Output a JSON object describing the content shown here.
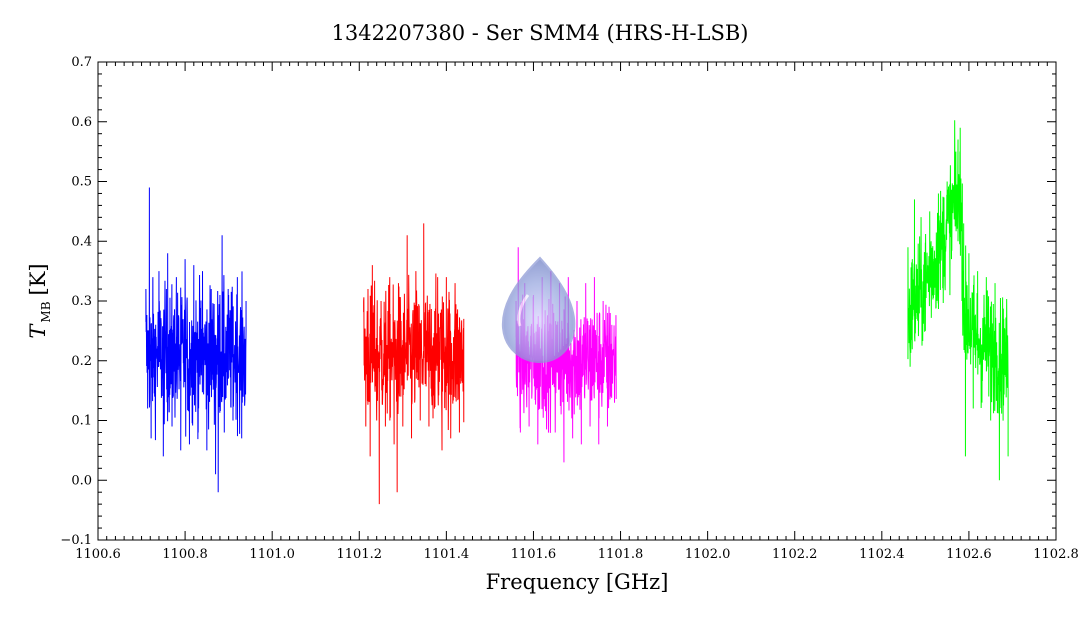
{
  "chart_data": {
    "type": "line",
    "title": "1342207380 - Ser SMM4 (HRS-H-LSB)",
    "xlabel": "Frequency [GHz]",
    "ylabel": {
      "symbol": "T",
      "subscript": "MB",
      "unit": "[K]"
    },
    "xlim": [
      1100.6,
      1102.8
    ],
    "ylim": [
      -0.1,
      0.7
    ],
    "x_ticks": [
      "1100.6",
      "1100.8",
      "1101.0",
      "1101.2",
      "1101.4",
      "1101.6",
      "1101.8",
      "1102.0",
      "1102.2",
      "1102.4",
      "1102.6",
      "1102.8"
    ],
    "y_ticks": [
      "0.7",
      "0.6",
      "0.5",
      "0.4",
      "0.3",
      "0.2",
      "0.1",
      "0.0",
      "−0.1"
    ],
    "grid": false,
    "legend": "none",
    "series": [
      {
        "color": "#0000ff",
        "x_range": [
          1100.71,
          1100.94
        ],
        "baseline": 0.21,
        "noise": 0.09,
        "points": [
          [
            1100.71,
            0.32
          ],
          [
            1100.714,
            0.12
          ],
          [
            1100.718,
            0.49
          ],
          [
            1100.722,
            0.07
          ],
          [
            1100.726,
            0.34
          ],
          [
            1100.73,
            0.14
          ],
          [
            1100.74,
            0.35
          ],
          [
            1100.75,
            0.04
          ],
          [
            1100.76,
            0.38
          ],
          [
            1100.77,
            0.09
          ],
          [
            1100.78,
            0.34
          ],
          [
            1100.79,
            0.05
          ],
          [
            1100.8,
            0.37
          ],
          [
            1100.81,
            0.06
          ],
          [
            1100.82,
            0.36
          ],
          [
            1100.83,
            0.08
          ],
          [
            1100.84,
            0.35
          ],
          [
            1100.85,
            0.05
          ],
          [
            1100.86,
            0.32
          ],
          [
            1100.87,
            0.01
          ],
          [
            1100.876,
            -0.02
          ],
          [
            1100.88,
            0.31
          ],
          [
            1100.885,
            0.41
          ],
          [
            1100.89,
            0.08
          ],
          [
            1100.9,
            0.31
          ],
          [
            1100.91,
            0.1
          ],
          [
            1100.92,
            0.34
          ],
          [
            1100.93,
            0.07
          ],
          [
            1100.94,
            0.3
          ]
        ]
      },
      {
        "color": "#ff0000",
        "x_range": [
          1101.21,
          1101.44
        ],
        "baseline": 0.21,
        "noise": 0.09,
        "points": [
          [
            1101.21,
            0.3
          ],
          [
            1101.215,
            0.09
          ],
          [
            1101.22,
            0.32
          ],
          [
            1101.225,
            0.04
          ],
          [
            1101.23,
            0.36
          ],
          [
            1101.24,
            0.1
          ],
          [
            1101.246,
            -0.04
          ],
          [
            1101.25,
            0.3
          ],
          [
            1101.26,
            0.09
          ],
          [
            1101.27,
            0.34
          ],
          [
            1101.28,
            0.06
          ],
          [
            1101.287,
            -0.02
          ],
          [
            1101.29,
            0.33
          ],
          [
            1101.3,
            0.09
          ],
          [
            1101.31,
            0.41
          ],
          [
            1101.32,
            0.07
          ],
          [
            1101.33,
            0.35
          ],
          [
            1101.34,
            0.1
          ],
          [
            1101.348,
            0.43
          ],
          [
            1101.36,
            0.09
          ],
          [
            1101.38,
            0.34
          ],
          [
            1101.39,
            0.05
          ],
          [
            1101.4,
            0.34
          ],
          [
            1101.41,
            0.07
          ],
          [
            1101.42,
            0.33
          ],
          [
            1101.43,
            0.08
          ],
          [
            1101.44,
            0.27
          ]
        ]
      },
      {
        "color": "#ff00ff",
        "x_range": [
          1101.56,
          1101.79
        ],
        "baseline": 0.2,
        "noise": 0.08,
        "points": [
          [
            1101.56,
            0.3
          ],
          [
            1101.565,
            0.39
          ],
          [
            1101.57,
            0.08
          ],
          [
            1101.58,
            0.33
          ],
          [
            1101.59,
            0.09
          ],
          [
            1101.6,
            0.31
          ],
          [
            1101.61,
            0.06
          ],
          [
            1101.62,
            0.34
          ],
          [
            1101.63,
            0.09
          ],
          [
            1101.64,
            0.35
          ],
          [
            1101.65,
            0.08
          ],
          [
            1101.66,
            0.33
          ],
          [
            1101.67,
            0.03
          ],
          [
            1101.68,
            0.34
          ],
          [
            1101.69,
            0.07
          ],
          [
            1101.7,
            0.3
          ],
          [
            1101.71,
            0.06
          ],
          [
            1101.72,
            0.33
          ],
          [
            1101.73,
            0.09
          ],
          [
            1101.74,
            0.34
          ],
          [
            1101.75,
            0.06
          ],
          [
            1101.76,
            0.3
          ],
          [
            1101.77,
            0.09
          ],
          [
            1101.78,
            0.26
          ],
          [
            1101.79,
            0.17
          ]
        ]
      },
      {
        "color": "#00ff00",
        "x_range": [
          1102.46,
          1102.69
        ],
        "segments": [
          [
            1102.46,
            0.27
          ],
          [
            1102.5,
            0.33
          ],
          [
            1102.54,
            0.4
          ],
          [
            1102.58,
            0.49
          ],
          [
            1102.59,
            0.28
          ],
          [
            1102.62,
            0.23
          ],
          [
            1102.65,
            0.22
          ],
          [
            1102.69,
            0.2
          ]
        ],
        "noise": 0.08,
        "points": [
          [
            1102.46,
            0.39
          ],
          [
            1102.465,
            0.19
          ],
          [
            1102.47,
            0.37
          ],
          [
            1102.475,
            0.47
          ],
          [
            1102.48,
            0.28
          ],
          [
            1102.49,
            0.41
          ],
          [
            1102.5,
            0.25
          ],
          [
            1102.51,
            0.45
          ],
          [
            1102.52,
            0.31
          ],
          [
            1102.53,
            0.48
          ],
          [
            1102.54,
            0.33
          ],
          [
            1102.55,
            0.5
          ],
          [
            1102.56,
            0.37
          ],
          [
            1102.57,
            0.55
          ],
          [
            1102.575,
            0.4
          ],
          [
            1102.58,
            0.59
          ],
          [
            1102.584,
            0.3
          ],
          [
            1102.588,
            0.43
          ],
          [
            1102.592,
            0.04
          ],
          [
            1102.595,
            0.25
          ],
          [
            1102.6,
            0.38
          ],
          [
            1102.61,
            0.12
          ],
          [
            1102.62,
            0.35
          ],
          [
            1102.63,
            0.13
          ],
          [
            1102.64,
            0.34
          ],
          [
            1102.65,
            0.1
          ],
          [
            1102.66,
            0.33
          ],
          [
            1102.67,
            0.0
          ],
          [
            1102.68,
            0.27
          ],
          [
            1102.69,
            0.04
          ]
        ]
      }
    ]
  }
}
